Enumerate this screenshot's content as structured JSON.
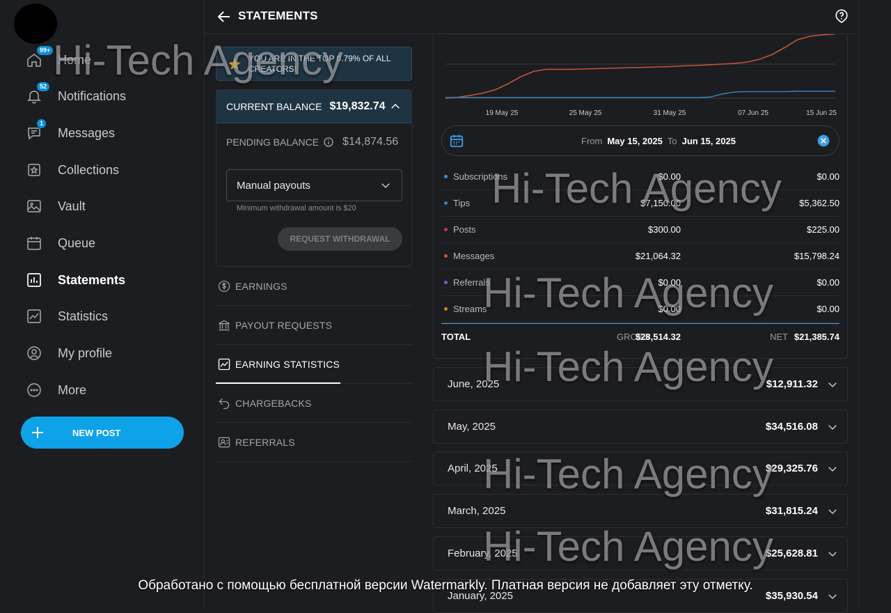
{
  "nav": {
    "items": [
      {
        "label": "Home",
        "icon": "home-icon",
        "badge": "99+",
        "active": false
      },
      {
        "label": "Notifications",
        "icon": "bell-icon",
        "badge": "52",
        "active": false
      },
      {
        "label": "Messages",
        "icon": "chat-icon",
        "badge": "1",
        "active": false
      },
      {
        "label": "Collections",
        "icon": "collections-icon",
        "badge": "",
        "active": false
      },
      {
        "label": "Vault",
        "icon": "image-icon",
        "badge": "",
        "active": false
      },
      {
        "label": "Queue",
        "icon": "calendar-icon",
        "badge": "",
        "active": false
      },
      {
        "label": "Statements",
        "icon": "bar-chart-icon",
        "badge": "",
        "active": true
      },
      {
        "label": "Statistics",
        "icon": "trend-icon",
        "badge": "",
        "active": false
      },
      {
        "label": "My profile",
        "icon": "profile-icon",
        "badge": "",
        "active": false
      },
      {
        "label": "More",
        "icon": "more-icon",
        "badge": "",
        "active": false
      }
    ],
    "new_post_label": "NEW POST"
  },
  "header": {
    "title": "STATEMENTS"
  },
  "banner": {
    "text": "YOU ARE IN THE TOP 0.79% OF ALL CREATORS!"
  },
  "balance": {
    "current_label": "CURRENT BALANCE",
    "current_value": "$19,832.74",
    "pending_label": "PENDING BALANCE",
    "pending_value": "$14,874.56",
    "payout_method": "Manual payouts",
    "min_note": "Minimum withdrawal amount is $20",
    "request_label": "REQUEST WITHDRAWAL"
  },
  "menu": [
    {
      "label": "EARNINGS",
      "icon": "dollar-icon",
      "active": false
    },
    {
      "label": "PAYOUT REQUESTS",
      "icon": "bank-icon",
      "active": false
    },
    {
      "label": "EARNING STATISTICS",
      "icon": "chart-icon",
      "active": true
    },
    {
      "label": "CHARGEBACKS",
      "icon": "undo-icon",
      "active": false
    },
    {
      "label": "REFERRALS",
      "icon": "referral-icon",
      "active": false
    }
  ],
  "chart_data": {
    "type": "line",
    "x_ticks": [
      "19 May 25",
      "25 May 25",
      "31 May 25",
      "07 Jun 25",
      "15 Jun 25"
    ],
    "x": [
      0,
      1,
      2,
      3,
      4,
      5,
      6,
      7,
      8,
      9,
      10,
      11,
      12,
      13,
      14,
      15,
      16,
      17,
      18,
      19,
      20,
      21,
      22,
      23,
      24,
      25,
      26,
      27,
      28,
      29,
      30,
      31
    ],
    "series": [
      {
        "color": "#c2573a",
        "values": [
          0,
          0.3,
          0.8,
          1.5,
          2.5,
          4.2,
          6.2,
          7.7,
          8.3,
          8.3,
          8.3,
          8.4,
          8.5,
          8.6,
          8.7,
          8.8,
          8.9,
          9.0,
          9.1,
          9.3,
          9.4,
          9.6,
          9.8,
          10.0,
          10.4,
          11.2,
          12.6,
          14.6,
          16.8,
          17.8,
          18.2,
          18.4
        ]
      },
      {
        "color": "#3b7fb0",
        "values": [
          0.2,
          0.2,
          0.2,
          0.2,
          0.2,
          0.2,
          0.2,
          0.2,
          0.2,
          0.2,
          0.2,
          0.2,
          0.2,
          0.2,
          0.2,
          0.2,
          0.2,
          0.2,
          0.2,
          0.2,
          0.2,
          0.3,
          1.2,
          1.8,
          1.9,
          1.9,
          1.9,
          1.9,
          2.0,
          2.0,
          2.0,
          2.0
        ]
      }
    ],
    "grid": true
  },
  "date_range": {
    "from_label": "From",
    "from": "May 15, 2025",
    "to_label": "To",
    "to": "Jun 15, 2025"
  },
  "breakdown": [
    {
      "name": "Subscriptions",
      "color": "#3b8ede",
      "gross": "$0.00",
      "net": "$0.00"
    },
    {
      "name": "Tips",
      "color": "#2f86b8",
      "gross": "$7,150.00",
      "net": "$5,362.50"
    },
    {
      "name": "Posts",
      "color": "#c2364f",
      "gross": "$300.00",
      "net": "$225.00"
    },
    {
      "name": "Messages",
      "color": "#c2573a",
      "gross": "$21,064.32",
      "net": "$15,798.24"
    },
    {
      "name": "Referrals",
      "color": "#7e5bc2",
      "gross": "$0.00",
      "net": "$0.00"
    },
    {
      "name": "Streams",
      "color": "#d4822a",
      "gross": "$0.00",
      "net": "$0.00"
    }
  ],
  "total": {
    "label": "TOTAL",
    "gross_label": "GROSS",
    "gross": "$28,514.32",
    "net_label": "NET",
    "net": "$21,385.74"
  },
  "months": [
    {
      "label": "June, 2025",
      "value": "$12,911.32"
    },
    {
      "label": "May, 2025",
      "value": "$34,516.08"
    },
    {
      "label": "April, 2025",
      "value": "$29,325.76"
    },
    {
      "label": "March, 2025",
      "value": "$31,815.24"
    },
    {
      "label": "February, 2025",
      "value": "$25,628.81"
    },
    {
      "label": "January, 2025",
      "value": "$35,930.54"
    }
  ],
  "watermark": "Hi-Tech Agency",
  "notice": "Обработано с помощью бесплатной версии Watermarkly. Платная версия не добавляет эту отметку."
}
